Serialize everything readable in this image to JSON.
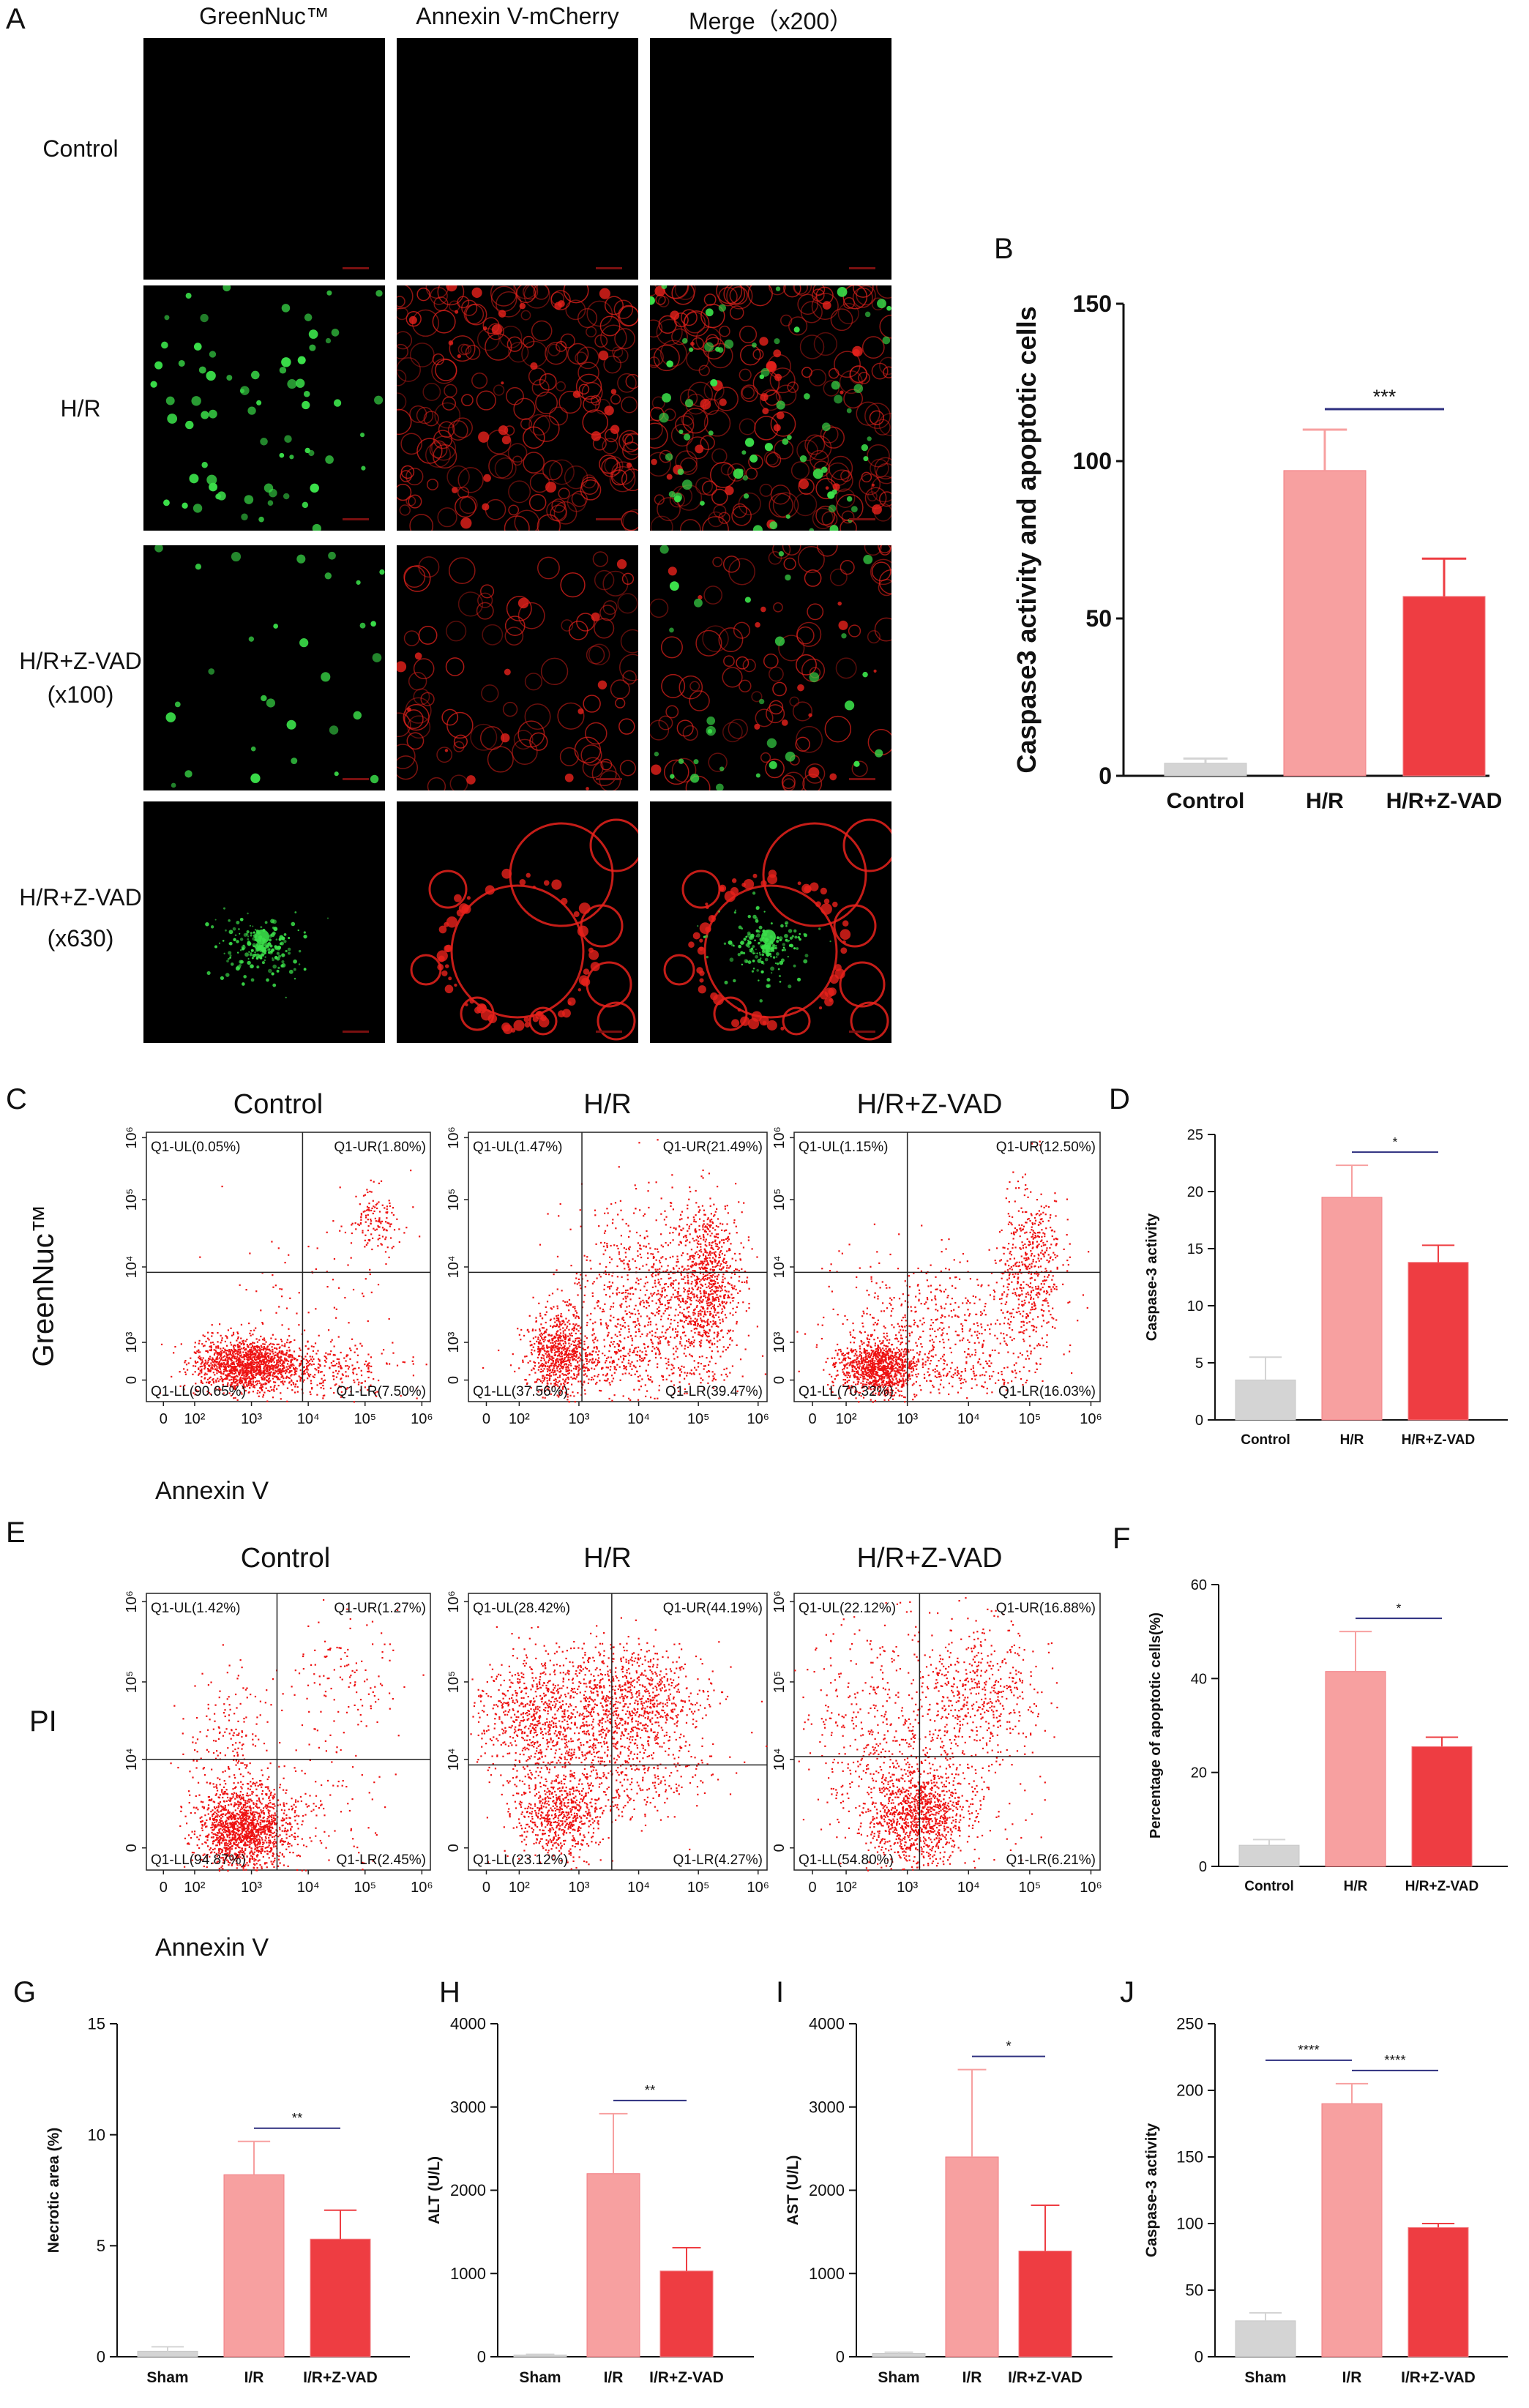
{
  "panel_letters": [
    "A",
    "B",
    "C",
    "D",
    "E",
    "F",
    "G",
    "H",
    "I",
    "J"
  ],
  "panel_a": {
    "column_titles": [
      "GreenNuc™",
      "Annexin V-mCherry",
      "Merge（x200）"
    ],
    "row_labels": [
      {
        "line1": "Control",
        "line2": ""
      },
      {
        "line1": "H/R",
        "line2": ""
      },
      {
        "line1": "H/R+Z-VAD",
        "line2": "(x100)"
      },
      {
        "line1": "H/R+Z-VAD",
        "line2": "(x630)"
      }
    ],
    "channel_colors": {
      "green": "#3be04a",
      "red": "#e8221c",
      "background": "#000000"
    }
  },
  "flow_c": {
    "titles": [
      "Control",
      "H/R",
      "H/R+Z-VAD"
    ],
    "y_label": "GreenNuc™",
    "x_caption": "Annexin V",
    "gates": [
      [
        "Q1-UL(0.05%)",
        "Q1-UR(1.80%)",
        "Q1-LL(90.65%)",
        "Q1-LR(7.50%)"
      ],
      [
        "Q1-UL(1.47%)",
        "Q1-UR(21.49%)",
        "Q1-LL(37.56%)",
        "Q1-LR(39.47%)"
      ],
      [
        "Q1-UL(1.15%)",
        "Q1-UR(12.50%)",
        "Q1-LL(70.32%)",
        "Q1-LR(16.03%)"
      ]
    ],
    "x_ticks": [
      "0",
      "10²",
      "10³",
      "10⁴",
      "10⁵",
      "10⁶"
    ],
    "y_ticks": [
      "0",
      "10³",
      "10⁴",
      "10⁵",
      "10⁶"
    ]
  },
  "flow_e": {
    "titles": [
      "Control",
      "H/R",
      "H/R+Z-VAD"
    ],
    "y_label": "PI",
    "x_caption": "Annexin V",
    "gates": [
      [
        "Q1-UL(1.42%)",
        "Q1-UR(1.27%)",
        "Q1-LL(94.87%)",
        "Q1-LR(2.45%)"
      ],
      [
        "Q1-UL(28.42%)",
        "Q1-UR(44.19%)",
        "Q1-LL(23.12%)",
        "Q1-LR(4.27%)"
      ],
      [
        "Q1-UL(22.12%)",
        "Q1-UR(16.88%)",
        "Q1-LL(54.80%)",
        "Q1-LR(6.21%)"
      ]
    ],
    "x_ticks": [
      "0",
      "10²",
      "10³",
      "10⁴",
      "10⁵",
      "10⁶"
    ],
    "y_ticks": [
      "0",
      "10⁴",
      "10⁵",
      "10⁶"
    ]
  },
  "chart_data": [
    {
      "id": "B",
      "type": "bar",
      "categories": [
        "Control",
        "H/R",
        "H/R+Z-VAD"
      ],
      "values": [
        4,
        97,
        57
      ],
      "errors": [
        1.5,
        13,
        12
      ],
      "ylabel": "Caspase3 activity and apoptotic cells",
      "ylim": [
        0,
        150
      ],
      "yticks": [
        0,
        50,
        100,
        150
      ],
      "significance": [
        {
          "from": 1,
          "to": 2,
          "label": "***"
        }
      ],
      "colors": [
        "#d4d4d4",
        "#f7a0a0",
        "#ee3d42"
      ]
    },
    {
      "id": "D",
      "type": "bar",
      "categories": [
        "Control",
        "H/R",
        "H/R+Z-VAD"
      ],
      "values": [
        3.5,
        19.5,
        13.8
      ],
      "errors": [
        2,
        2.8,
        1.5
      ],
      "ylabel": "Caspase-3 activity",
      "ylim": [
        0,
        25
      ],
      "yticks": [
        0,
        5,
        10,
        15,
        20,
        25
      ],
      "significance": [
        {
          "from": 1,
          "to": 2,
          "label": "*"
        }
      ],
      "colors": [
        "#d4d4d4",
        "#f7a0a0",
        "#ee3d42"
      ]
    },
    {
      "id": "F",
      "type": "bar",
      "categories": [
        "Control",
        "H/R",
        "H/R+Z-VAD"
      ],
      "values": [
        4.5,
        41.5,
        25.5
      ],
      "errors": [
        1.2,
        8.5,
        2
      ],
      "ylabel": "Percentage of apoptotic cells(%)",
      "ylim": [
        0,
        60
      ],
      "yticks": [
        0,
        20,
        40,
        60
      ],
      "significance": [
        {
          "from": 1,
          "to": 2,
          "label": "*"
        }
      ],
      "colors": [
        "#d4d4d4",
        "#f7a0a0",
        "#ee3d42"
      ]
    },
    {
      "id": "G",
      "type": "bar",
      "categories": [
        "Sham",
        "I/R",
        "I/R+Z-VAD"
      ],
      "values": [
        0.25,
        8.2,
        5.3
      ],
      "errors": [
        0.2,
        1.5,
        1.3
      ],
      "ylabel": "Necrotic area (%)",
      "ylim": [
        0,
        15
      ],
      "yticks": [
        0,
        5,
        10,
        15
      ],
      "significance": [
        {
          "from": 1,
          "to": 2,
          "label": "**"
        }
      ],
      "colors": [
        "#d4d4d4",
        "#f7a0a0",
        "#ee3d42"
      ]
    },
    {
      "id": "H",
      "type": "bar",
      "categories": [
        "Sham",
        "I/R",
        "I/R+Z-VAD"
      ],
      "values": [
        20,
        2200,
        1030
      ],
      "errors": [
        10,
        720,
        280
      ],
      "ylabel": "ALT (U/L)",
      "ylim": [
        0,
        4000
      ],
      "yticks": [
        0,
        1000,
        2000,
        3000,
        4000
      ],
      "significance": [
        {
          "from": 1,
          "to": 2,
          "label": "**"
        }
      ],
      "colors": [
        "#d4d4d4",
        "#f7a0a0",
        "#ee3d42"
      ]
    },
    {
      "id": "I",
      "type": "bar",
      "categories": [
        "Sham",
        "I/R",
        "I/R+Z-VAD"
      ],
      "values": [
        40,
        2400,
        1270
      ],
      "errors": [
        15,
        1050,
        550
      ],
      "ylabel": "AST (U/L)",
      "ylim": [
        0,
        4000
      ],
      "yticks": [
        0,
        1000,
        2000,
        3000,
        4000
      ],
      "significance": [
        {
          "from": 1,
          "to": 2,
          "label": "*"
        }
      ],
      "colors": [
        "#d4d4d4",
        "#f7a0a0",
        "#ee3d42"
      ]
    },
    {
      "id": "J",
      "type": "bar",
      "categories": [
        "Sham",
        "I/R",
        "I/R+Z-VAD"
      ],
      "values": [
        27,
        190,
        97
      ],
      "errors": [
        6,
        15,
        3
      ],
      "ylabel": "Caspase-3 activity",
      "ylim": [
        0,
        250
      ],
      "yticks": [
        0,
        50,
        100,
        150,
        200,
        250
      ],
      "significance": [
        {
          "from": 0,
          "to": 1,
          "label": "****"
        },
        {
          "from": 1,
          "to": 2,
          "label": "****"
        }
      ],
      "colors": [
        "#d4d4d4",
        "#f7a0a0",
        "#ee3d42"
      ]
    }
  ]
}
